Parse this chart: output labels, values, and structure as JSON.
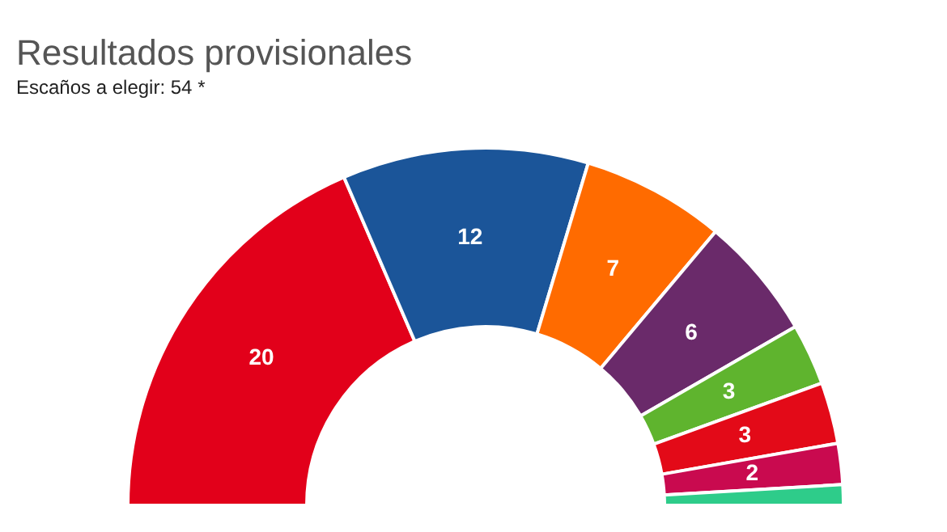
{
  "chart_data": {
    "type": "donut",
    "title": "Resultados provisionales",
    "subtitle": "Escaños a elegir: 54 *",
    "categories": [
      null,
      null,
      null,
      null,
      null,
      null,
      null,
      null
    ],
    "values": [
      20,
      12,
      7,
      6,
      3,
      3,
      2,
      1
    ],
    "value_labels": [
      "20",
      "12",
      "7",
      "6",
      "3",
      "3",
      "2",
      null
    ],
    "colors": [
      "#e2001a",
      "#1b5599",
      "#ff6b00",
      "#6a2a6a",
      "#5fb42e",
      "#e30a18",
      "#c90a4f",
      "#2ecc8a"
    ],
    "legend": false
  }
}
